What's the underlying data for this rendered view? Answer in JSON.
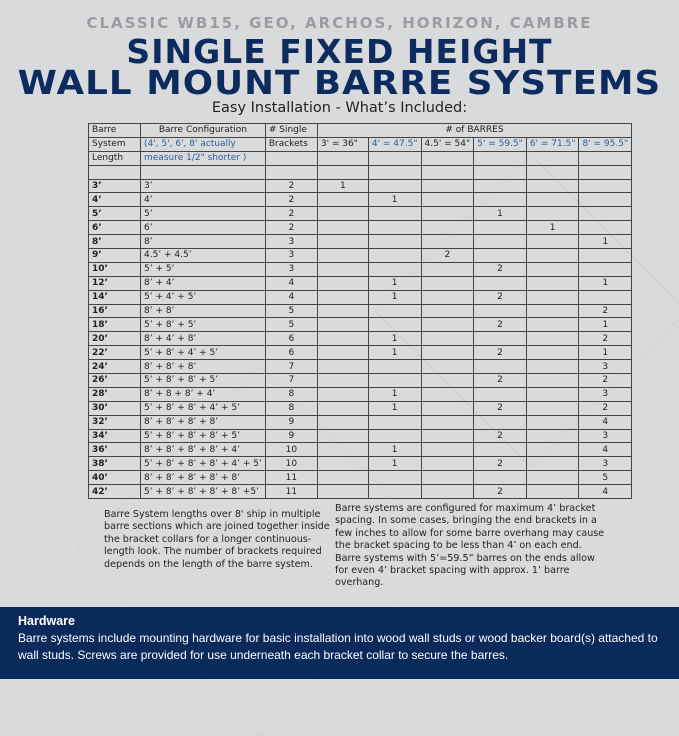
{
  "header": {
    "subtitle": "CLASSIC WB15, GEO, ARCHOS, HORIZON, CAMBRE",
    "title_line1": "SINGLE FIXED HEIGHT",
    "title_line2": "WALL MOUNT BARRE SYSTEMS",
    "tagline": "Easy Installation - What’s Included:"
  },
  "table": {
    "header_row1": [
      "Barre",
      "Barre Configuration",
      "# Single",
      "# of BARRES"
    ],
    "header_row2": [
      "System",
      "(4', 5', 6', 8' actually",
      "Brackets",
      "3' = 36\"",
      "4' = 47.5\"",
      "4.5' = 54\"",
      "5' = 59.5\"",
      "6' = 71.5\"",
      "8' = 95.5\""
    ],
    "header_row3": [
      "Length",
      "measure 1/2\" shorter )"
    ],
    "rows": [
      [
        "3’",
        "3’",
        "2",
        "1",
        "",
        "",
        "",
        "",
        ""
      ],
      [
        "4’",
        "4’",
        "2",
        "",
        "1",
        "",
        "",
        "",
        ""
      ],
      [
        "5’",
        "5’",
        "2",
        "",
        "",
        "",
        "1",
        "",
        ""
      ],
      [
        "6’",
        "6’",
        "2",
        "",
        "",
        "",
        "",
        "1",
        ""
      ],
      [
        "8’",
        "8’",
        "3",
        "",
        "",
        "",
        "",
        "",
        "1"
      ],
      [
        "9’",
        "4.5’ + 4.5’",
        "3",
        "",
        "",
        "2",
        "",
        "",
        ""
      ],
      [
        "10’",
        "5’ + 5’",
        "3",
        "",
        "",
        "",
        "2",
        "",
        ""
      ],
      [
        "12’",
        "8’ + 4’",
        "4",
        "",
        "1",
        "",
        "",
        "",
        "1"
      ],
      [
        "14’",
        "5’ + 4’ + 5’",
        "4",
        "",
        "1",
        "",
        "2",
        "",
        ""
      ],
      [
        "16’",
        "8’ + 8’",
        "5",
        "",
        "",
        "",
        "",
        "",
        "2"
      ],
      [
        "18’",
        "5’ + 8’ + 5’",
        "5",
        "",
        "",
        "",
        "2",
        "",
        "1"
      ],
      [
        "20’",
        "8’ + 4’ + 8’",
        "6",
        "",
        "1",
        "",
        "",
        "",
        "2"
      ],
      [
        "22’",
        "5’ + 8’ + 4’ + 5’",
        "6",
        "",
        "1",
        "",
        "2",
        "",
        "1"
      ],
      [
        "24’",
        "8’ + 8’ + 8’",
        "7",
        "",
        "",
        "",
        "",
        "",
        "3"
      ],
      [
        "26’",
        "5’ + 8’ + 8’ + 5’",
        "7",
        "",
        "",
        "",
        "2",
        "",
        "2"
      ],
      [
        "28’",
        "8’ + 8 + 8’ + 4’",
        "8",
        "",
        "1",
        "",
        "",
        "",
        "3"
      ],
      [
        "30’",
        "5’ + 8’ + 8’ + 4’ + 5’",
        "8",
        "",
        "1",
        "",
        "2",
        "",
        "2"
      ],
      [
        "32’",
        "8’ + 8’ + 8’ + 8’",
        "9",
        "",
        "",
        "",
        "",
        "",
        "4"
      ],
      [
        "34’",
        "5’ + 8’ + 8’ + 8’ + 5’",
        "9",
        "",
        "",
        "",
        "2",
        "",
        "3"
      ],
      [
        "36’",
        "8’ + 8’ + 8’ + 8’ + 4’",
        "10",
        "",
        "1",
        "",
        "",
        "",
        "4"
      ],
      [
        "38’",
        "5’ + 8’ + 8’ + 8’ + 4’ + 5’",
        "10",
        "",
        "1",
        "",
        "2",
        "",
        "3"
      ],
      [
        "40’",
        "8’ + 8’ + 8’ + 8’ + 8’",
        "11",
        "",
        "",
        "",
        "",
        "",
        "5"
      ],
      [
        "42’",
        "5’ + 8’ + 8’ + 8’ + 8’ +5’",
        "11",
        "",
        "",
        "",
        "2",
        "",
        "4"
      ]
    ]
  },
  "notes": {
    "left": "Barre System lengths over 8' ship in multiple barre sections which are joined together inside the bracket collars for a longer continuous-length look. The number of brackets required depends on the length of the barre system.",
    "right": "Barre systems are configured for maximum 4’ bracket spacing.  In some cases, bringing the end brackets in a few inches to allow for some barre overhang may cause the bracket spacing to be less than 4’ on each end.  Barre systems with 5’=59.5” barres on the ends allow for even 4’ bracket spacing with approx. 1’ barre overhang."
  },
  "footer": {
    "heading": "Hardware",
    "body": "Barre systems include mounting hardware for basic installation into wood wall studs or wood backer board(s) attached to wall studs. Screws are provided for use underneath each bracket collar to secure the barres."
  },
  "colors": {
    "navy": "#0b2a5c",
    "background": "#d9dadc",
    "blue_text": "#2d5f9a"
  }
}
